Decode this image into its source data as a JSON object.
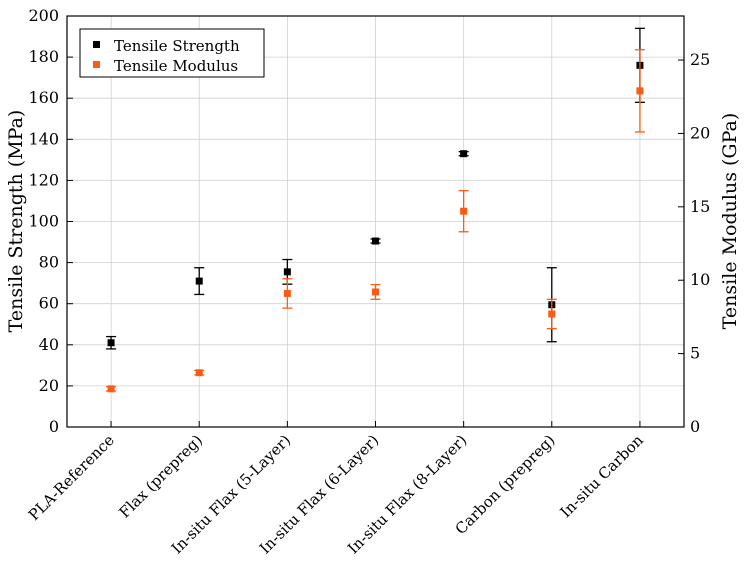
{
  "chart_data": {
    "type": "scatter",
    "title": "",
    "categories": [
      "PLA-Reference",
      "Flax (prepreg)",
      "In-situ Flax (5-Layer)",
      "In-situ Flax (6-Layer)",
      "In-situ Flax (8-Layer)",
      "Carbon (prepreg)",
      "In-situ Carbon"
    ],
    "ylabel": "Tensile Strength (MPa)",
    "ylim": [
      0,
      200
    ],
    "yticks": [
      0,
      20,
      40,
      60,
      80,
      100,
      120,
      140,
      160,
      180,
      200
    ],
    "y2label": "Tensile Modulus (GPa)",
    "y2lim": [
      0,
      28
    ],
    "y2ticks": [
      0,
      5,
      10,
      15,
      20,
      25
    ],
    "grid": true,
    "legend_position": "top-left",
    "series": [
      {
        "name": "Tensile Strength",
        "axis": "left",
        "color": "#000000",
        "values": [
          41,
          71,
          75.5,
          90.5,
          133,
          59.5,
          176
        ],
        "error": [
          3,
          6.5,
          6,
          1,
          1,
          18,
          18
        ]
      },
      {
        "name": "Tensile Modulus",
        "axis": "right",
        "color": "#ff5a14",
        "values": [
          2.6,
          3.7,
          9.1,
          9.2,
          14.7,
          7.7,
          22.9
        ],
        "error": [
          0.15,
          0.15,
          1.0,
          0.5,
          1.4,
          1.0,
          2.8
        ]
      }
    ]
  }
}
